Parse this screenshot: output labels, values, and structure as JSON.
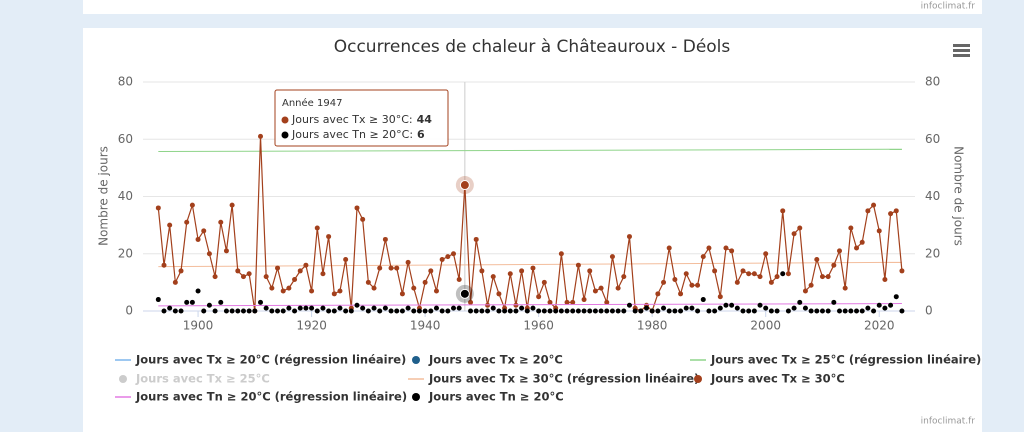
{
  "chart_data": {
    "type": "line",
    "title": "Occurrences de chaleur à Châteauroux - Déols",
    "credits": "infoclimat.fr",
    "y_label": "Nombre de jours",
    "y2_label": "Nombre de jours",
    "xlim": [
      1890.3,
      2026.3
    ],
    "xticks": [
      1900,
      1920,
      1940,
      1960,
      1980,
      2000,
      2020
    ],
    "ylim": [
      0,
      80
    ],
    "yticks": [
      0,
      20,
      40,
      60,
      80
    ],
    "y2lim": [
      0,
      80
    ],
    "y2ticks": [
      0,
      20,
      40,
      60,
      80
    ],
    "grid": true,
    "x": [
      1893,
      1894,
      1895,
      1896,
      1897,
      1898,
      1899,
      1900,
      1901,
      1902,
      1903,
      1904,
      1905,
      1906,
      1907,
      1908,
      1909,
      1910,
      1911,
      1912,
      1913,
      1914,
      1915,
      1916,
      1917,
      1918,
      1919,
      1920,
      1921,
      1922,
      1923,
      1924,
      1925,
      1926,
      1927,
      1928,
      1929,
      1930,
      1931,
      1932,
      1933,
      1934,
      1935,
      1936,
      1937,
      1938,
      1939,
      1940,
      1941,
      1942,
      1943,
      1944,
      1945,
      1946,
      1947,
      1948,
      1949,
      1950,
      1951,
      1952,
      1953,
      1954,
      1955,
      1956,
      1957,
      1958,
      1959,
      1960,
      1961,
      1962,
      1963,
      1964,
      1965,
      1966,
      1967,
      1968,
      1969,
      1970,
      1971,
      1972,
      1973,
      1974,
      1975,
      1976,
      1977,
      1978,
      1979,
      1980,
      1981,
      1982,
      1983,
      1984,
      1985,
      1986,
      1987,
      1988,
      1989,
      1990,
      1991,
      1992,
      1993,
      1994,
      1995,
      1996,
      1997,
      1998,
      1999,
      2000,
      2001,
      2002,
      2003,
      2004,
      2005,
      2006,
      2007,
      2008,
      2009,
      2010,
      2011,
      2012,
      2013,
      2014,
      2015,
      2016,
      2017,
      2018,
      2019,
      2020,
      2021,
      2022,
      2023,
      2024
    ],
    "series": [
      {
        "name": "Jours avec Tx ≥ 20°C (régression linéaire)",
        "color": "#7cb5ec",
        "kind": "line"
      },
      {
        "name": "Jours avec Tx ≥ 20°C",
        "color": "#1f5f8b",
        "kind": "scatter"
      },
      {
        "name": "Jours avec Tx ≥ 25°C (régression linéaire)",
        "color": "#8fd48a",
        "kind": "line",
        "x": [
          1893,
          2024
        ],
        "values": [
          55.7,
          56.5
        ]
      },
      {
        "name": "Jours avec Tx ≥ 25°C",
        "color": "#cccccc",
        "kind": "scatter",
        "visible": false
      },
      {
        "name": "Jours avec Tx ≥ 30°C (régression linéaire)",
        "color": "#f3bd9c",
        "kind": "line",
        "x": [
          1893,
          2024
        ],
        "values": [
          15.5,
          17
        ]
      },
      {
        "name": "Jours avec Tx ≥ 30°C",
        "color": "#a3401c",
        "kind": "line",
        "marker": true,
        "values": [
          36,
          16,
          30,
          10,
          14,
          31,
          37,
          25,
          28,
          20,
          12,
          31,
          21,
          37,
          14,
          12,
          13,
          0,
          61,
          12,
          8,
          15,
          7,
          8,
          11,
          14,
          16,
          7,
          29,
          13,
          26,
          6,
          7,
          18,
          1,
          36,
          32,
          10,
          8,
          15,
          25,
          15,
          15,
          6,
          17,
          8,
          1,
          10,
          14,
          7,
          18,
          19,
          20,
          11,
          44,
          3,
          25,
          14,
          2,
          12,
          6,
          1,
          13,
          2,
          14,
          1,
          15,
          5,
          10,
          3,
          1,
          20,
          3,
          3,
          16,
          4,
          14,
          7,
          8,
          3,
          19,
          8,
          12,
          26,
          1,
          0,
          2,
          0,
          6,
          10,
          22,
          11,
          6,
          13,
          9,
          9,
          19,
          22,
          14,
          5,
          22,
          21,
          10,
          14,
          13,
          13,
          12,
          20,
          10,
          12,
          35,
          13,
          27,
          29,
          7,
          9,
          18,
          12,
          12,
          16,
          21,
          8,
          29,
          22,
          24,
          35,
          37,
          28,
          11,
          34,
          35,
          14
        ]
      },
      {
        "name": "Jours avec Tn ≥ 20°C (régression linéaire)",
        "color": "#e27ae2",
        "kind": "line",
        "x": [
          1893,
          2024
        ],
        "values": [
          1.8,
          2.6
        ]
      },
      {
        "name": "Jours avec Tn ≥ 20°C",
        "color": "#000000",
        "kind": "scatter",
        "values": [
          4,
          0,
          1,
          0,
          0,
          3,
          3,
          7,
          0,
          2,
          0,
          3,
          0,
          0,
          0,
          0,
          0,
          0,
          3,
          1,
          0,
          0,
          0,
          1,
          0,
          1,
          1,
          1,
          0,
          1,
          0,
          0,
          1,
          0,
          0,
          2,
          1,
          0,
          1,
          0,
          1,
          0,
          0,
          0,
          1,
          0,
          0,
          0,
          0,
          1,
          0,
          0,
          1,
          1,
          6,
          0,
          0,
          0,
          0,
          1,
          0,
          0,
          0,
          0,
          1,
          0,
          1,
          0,
          0,
          0,
          0,
          0,
          0,
          0,
          0,
          0,
          0,
          0,
          0,
          0,
          0,
          0,
          0,
          2,
          0,
          0,
          1,
          0,
          0,
          1,
          0,
          0,
          0,
          1,
          1,
          0,
          4,
          0,
          0,
          1,
          2,
          2,
          1,
          0,
          0,
          0,
          2,
          1,
          0,
          0,
          13,
          0,
          1,
          3,
          1,
          0,
          0,
          0,
          0,
          3,
          0,
          0,
          0,
          0,
          0,
          1,
          0,
          2,
          1,
          2,
          5,
          0
        ]
      }
    ],
    "highlight_index": 54,
    "tooltip": {
      "title": "Année 1947",
      "rows": [
        {
          "label": "Jours avec Tx ≥ 30°C:",
          "value": 44,
          "color": "#a3401c"
        },
        {
          "label": "Jours avec Tn ≥ 20°C:",
          "value": 6,
          "color": "#000000"
        }
      ]
    }
  }
}
